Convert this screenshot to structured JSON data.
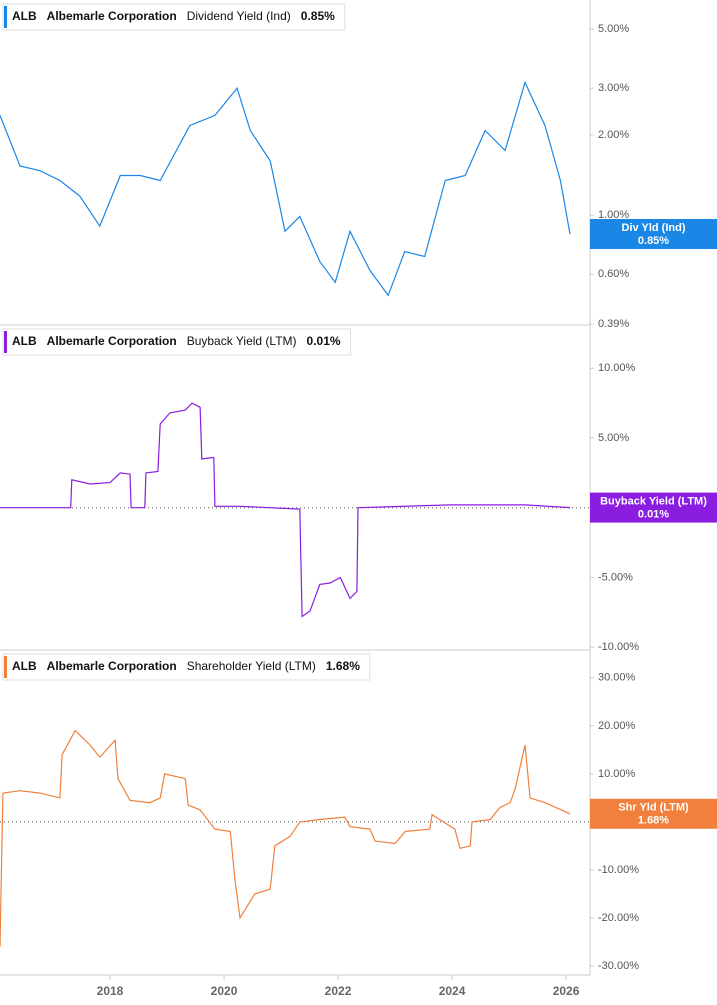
{
  "chart_data": [
    {
      "type": "line",
      "ticker": "ALB",
      "company": "Albemarle Corporation",
      "badge_name": "Div Yld (Ind)",
      "latest": "0.85%",
      "log_scale": true,
      "xlim": [
        2016.07,
        2026.42
      ],
      "ylim": [
        0.387,
        6.43
      ],
      "yticks": [
        {
          "value": 5,
          "label": "5.00%"
        },
        {
          "value": 3,
          "label": "3.00%"
        },
        {
          "value": 2,
          "label": "2.00%"
        },
        {
          "value": 1,
          "label": "1.00%"
        },
        {
          "value": 0.6,
          "label": "0.60%"
        },
        {
          "value": 0.39,
          "label": "0.39%"
        }
      ],
      "x": [
        2016.07,
        2016.42,
        2016.77,
        2017.12,
        2017.47,
        2017.82,
        2018.18,
        2018.53,
        2018.88,
        2019.4,
        2019.84,
        2020.23,
        2020.46,
        2020.81,
        2021.07,
        2021.33,
        2021.68,
        2021.95,
        2022.21,
        2022.56,
        2022.88,
        2023.17,
        2023.52,
        2023.88,
        2024.23,
        2024.58,
        2024.93,
        2025.28,
        2025.63,
        2025.9,
        2026.07
      ],
      "series": [
        {
          "name": "Dividend Yield (Ind)",
          "color": "#1a87e6",
          "values": [
            2.37,
            1.53,
            1.47,
            1.35,
            1.18,
            0.91,
            1.41,
            1.41,
            1.35,
            2.17,
            2.37,
            3.0,
            2.08,
            1.6,
            0.87,
            0.99,
            0.67,
            0.56,
            0.87,
            0.62,
            0.5,
            0.73,
            0.7,
            1.35,
            1.41,
            2.08,
            1.75,
            3.15,
            2.17,
            1.35,
            0.85
          ]
        }
      ]
    },
    {
      "type": "line",
      "ticker": "ALB",
      "company": "Albemarle Corporation",
      "badge_name": "Buyback Yield (LTM)",
      "latest": "0.01%",
      "log_scale": false,
      "zero_line": true,
      "xlim": [
        2016.07,
        2026.42
      ],
      "ylim": [
        -10.2,
        13.1
      ],
      "yticks": [
        {
          "value": 10,
          "label": "10.00%"
        },
        {
          "value": 5,
          "label": "5.00%"
        },
        {
          "value": -5,
          "label": "-5.00%"
        },
        {
          "value": -10,
          "label": "-10.00%"
        }
      ],
      "x": [
        2016.07,
        2017.31,
        2017.33,
        2017.65,
        2018.0,
        2018.18,
        2018.35,
        2018.37,
        2018.61,
        2018.63,
        2018.84,
        2018.88,
        2019.05,
        2019.32,
        2019.44,
        2019.58,
        2019.61,
        2019.82,
        2019.84,
        2020.28,
        2021.33,
        2021.37,
        2021.51,
        2021.68,
        2021.86,
        2022.04,
        2022.21,
        2022.33,
        2022.35,
        2023.96,
        2025.28,
        2026.07
      ],
      "series": [
        {
          "name": "Buyback Yield (LTM)",
          "color": "#8a1de0",
          "values": [
            0,
            0,
            2.0,
            1.7,
            1.8,
            2.5,
            2.4,
            0,
            0,
            2.5,
            2.6,
            6.0,
            6.8,
            7.0,
            7.5,
            7.2,
            3.5,
            3.6,
            0.1,
            0.1,
            -0.1,
            -7.8,
            -7.4,
            -5.5,
            -5.4,
            -5.0,
            -6.5,
            -6.0,
            0.0,
            0.2,
            0.2,
            0.01
          ]
        }
      ]
    },
    {
      "type": "line",
      "ticker": "ALB",
      "company": "Albemarle Corporation",
      "badge_name": "Shr Yld (LTM)",
      "latest": "1.68%",
      "log_scale": false,
      "zero_line": true,
      "xlim": [
        2016.07,
        2026.42
      ],
      "ylim": [
        -31.9,
        35.8
      ],
      "yticks": [
        {
          "value": 30,
          "label": "30.00%"
        },
        {
          "value": 20,
          "label": "20.00%"
        },
        {
          "value": 10,
          "label": "10.00%"
        },
        {
          "value": -10,
          "label": "-10.00%"
        },
        {
          "value": -20,
          "label": "-20.00%"
        },
        {
          "value": -30,
          "label": "-30.00%"
        }
      ],
      "xticks": [
        2018,
        2020,
        2022,
        2024,
        2026
      ],
      "x": [
        2016.07,
        2016.12,
        2016.42,
        2016.77,
        2017.12,
        2017.16,
        2017.39,
        2017.65,
        2017.82,
        2018.09,
        2018.14,
        2018.35,
        2018.7,
        2018.88,
        2018.96,
        2019.32,
        2019.37,
        2019.58,
        2019.84,
        2020.11,
        2020.19,
        2020.28,
        2020.54,
        2020.81,
        2020.89,
        2021.16,
        2021.33,
        2021.68,
        2022.12,
        2022.21,
        2022.56,
        2022.65,
        2023.0,
        2023.18,
        2023.61,
        2023.65,
        2024.05,
        2024.14,
        2024.32,
        2024.35,
        2024.67,
        2024.84,
        2025.02,
        2025.11,
        2025.28,
        2025.37,
        2025.63,
        2026.07
      ],
      "series": [
        {
          "name": "Shareholder Yield (LTM)",
          "color": "#f0803c",
          "values": [
            -26,
            6,
            6.5,
            6,
            5,
            14,
            19,
            16,
            13.5,
            17,
            9,
            4.5,
            4,
            5,
            10,
            9,
            3.5,
            2.5,
            -1.5,
            -2,
            -12,
            -20,
            -15,
            -14,
            -5,
            -3,
            0,
            0.5,
            1,
            -1,
            -1.5,
            -4,
            -4.5,
            -2,
            -1.5,
            1.5,
            -1.5,
            -5.5,
            -5,
            0,
            0.5,
            3,
            4,
            7,
            16,
            5,
            4,
            1.68
          ]
        }
      ]
    }
  ]
}
